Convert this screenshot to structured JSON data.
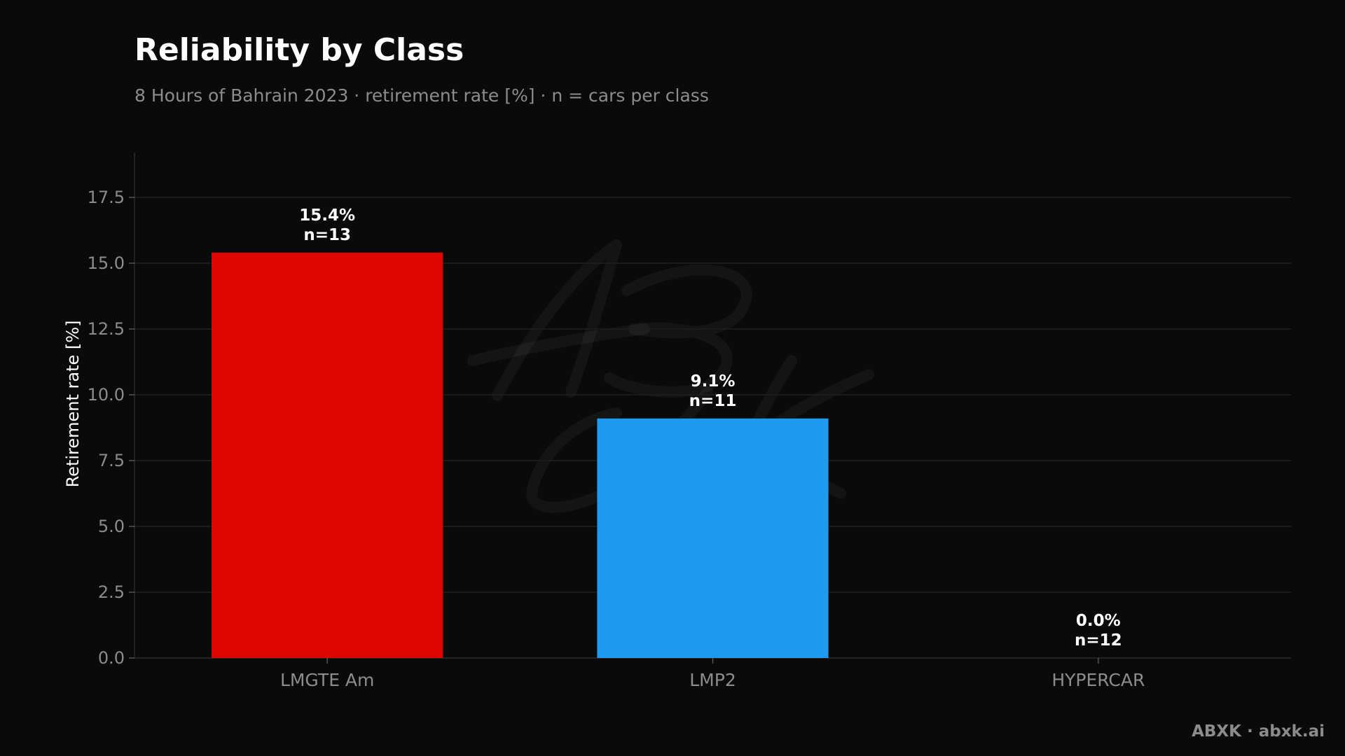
{
  "page": {
    "background": "#0a0a0a",
    "footer": "ABXK · abxk.ai",
    "watermark": "ABXK"
  },
  "chart_data": {
    "type": "bar",
    "title": "Reliability by Class",
    "subtitle": "8 Hours of Bahrain 2023 · retirement rate [%] · n = cars per class",
    "xlabel": "",
    "ylabel": "Retirement rate [%]",
    "ylim": [
      0,
      19.2
    ],
    "yticks": [
      0.0,
      2.5,
      5.0,
      7.5,
      10.0,
      12.5,
      15.0,
      17.5
    ],
    "ytick_labels": [
      "0.0",
      "2.5",
      "5.0",
      "7.5",
      "10.0",
      "12.5",
      "15.0",
      "17.5"
    ],
    "grid": true,
    "categories": [
      "LMGTE Am",
      "LMP2",
      "HYPERCAR"
    ],
    "values": [
      15.4,
      9.1,
      0.0
    ],
    "counts": [
      13,
      11,
      12
    ],
    "value_labels": [
      "15.4%",
      "9.1%",
      "0.0%"
    ],
    "count_labels": [
      "n=13",
      "n=11",
      "n=12"
    ],
    "colors": [
      "#e00600",
      "#1e9bf0",
      "#8a2be2"
    ],
    "grid_color": "#1f1f1f",
    "axis_color": "#2a2a2a"
  }
}
